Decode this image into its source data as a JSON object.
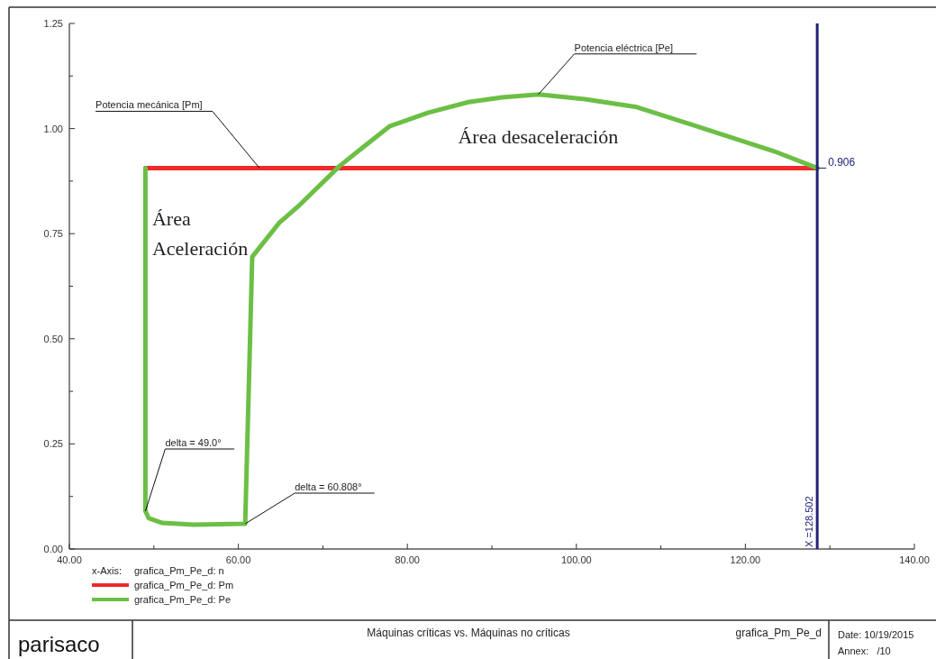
{
  "chart_data": {
    "type": "line",
    "xlabel": "grafica_Pm_Pe_d: n",
    "xlim": [
      40,
      140
    ],
    "xticks": [
      {
        "value": 40,
        "label": "40.00"
      },
      {
        "value": 50,
        "label": null
      },
      {
        "value": 60,
        "label": "60.00"
      },
      {
        "value": 70,
        "label": null
      },
      {
        "value": 80,
        "label": "80.00"
      },
      {
        "value": 90,
        "label": null
      },
      {
        "value": 100,
        "label": "100.00"
      },
      {
        "value": 110,
        "label": null
      },
      {
        "value": 120,
        "label": "120.00"
      },
      {
        "value": 130,
        "label": null
      },
      {
        "value": 140,
        "label": "140.00"
      }
    ],
    "ylim": [
      0,
      1.25
    ],
    "yticks": [
      {
        "value": 0,
        "label": "0.00"
      },
      {
        "value": 0.125,
        "label": null
      },
      {
        "value": 0.25,
        "label": "0.25"
      },
      {
        "value": 0.375,
        "label": null
      },
      {
        "value": 0.5,
        "label": "0.50"
      },
      {
        "value": 0.625,
        "label": null
      },
      {
        "value": 0.75,
        "label": "0.75"
      },
      {
        "value": 0.875,
        "label": null
      },
      {
        "value": 1,
        "label": "1.00"
      },
      {
        "value": 1.125,
        "label": null
      },
      {
        "value": 1.25,
        "label": "1.25"
      }
    ],
    "grid": false,
    "legend": "bottom left",
    "line_style": "solid",
    "marker": "none",
    "series": [
      {
        "name": "grafica_Pm_Pe_d: Pm",
        "color": "#ee2a2a",
        "x": [
          49.0,
          128.5
        ],
        "values": [
          0.906,
          0.906
        ]
      },
      {
        "name": "grafica_Pm_Pe_d: Pe",
        "color": "#6cbf45",
        "x": [
          49.0,
          49.0,
          49.4,
          51.0,
          54.7,
          60.6,
          60.808,
          61.64,
          64.84,
          67.29,
          71.98,
          74.9,
          77.95,
          82.5,
          87.23,
          91.2,
          95.54,
          101,
          107.16,
          112.6,
          118.14,
          123.4,
          128.5
        ],
        "values": [
          0.906,
          0.09,
          0.073,
          0.062,
          0.058,
          0.06,
          0.06,
          0.695,
          0.776,
          0.819,
          0.911,
          0.958,
          1.006,
          1.038,
          1.063,
          1.074,
          1.081,
          1.07,
          1.051,
          1.016,
          0.98,
          0.946,
          0.906
        ]
      }
    ],
    "ref_lines": [
      {
        "axis": "x",
        "value": 128.502,
        "label": "X =128.502",
        "color": "#1f2277"
      }
    ],
    "annotations": [
      {
        "text": "Potencia mecánica [Pm]",
        "x": 62.5,
        "y": 0.906
      },
      {
        "text": "Potencia eléctrica [Pe]",
        "x": 95.5,
        "y": 1.081
      },
      {
        "text": "delta = 49.0°",
        "x": 49.0,
        "y": 0.09
      },
      {
        "text": "delta = 60.808°",
        "x": 60.808,
        "y": 0.06
      },
      {
        "text": "0.906",
        "x": 128.502,
        "y": 0.906
      },
      "Área",
      "Aceleración",
      "Área desaceleración",
      "x-Axis:",
      "parisaco",
      "Máquinas críticas vs. Máquinas no críticas",
      "grafica_Pm_Pe_d",
      "Date: 10/19/2015",
      "Annex:   /10"
    ]
  }
}
